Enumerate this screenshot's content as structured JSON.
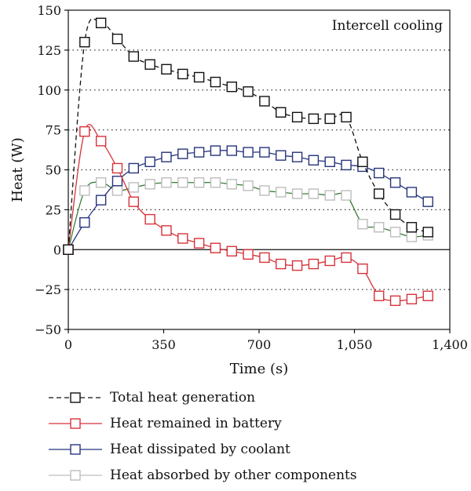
{
  "chart_data": {
    "type": "line",
    "annotation": "Intercell cooling",
    "xlabel": "Time (s)",
    "ylabel": "Heat (W)",
    "xlim": [
      0,
      1400
    ],
    "ylim": [
      -50,
      150
    ],
    "x_ticks": [
      0,
      350,
      700,
      1050,
      1400
    ],
    "x_tick_labels": [
      "0",
      "350",
      "700",
      "1,050",
      "1,400"
    ],
    "y_ticks": [
      -50,
      -25,
      0,
      25,
      50,
      75,
      100,
      125,
      150
    ],
    "y_tick_labels": [
      "−50",
      "−25",
      "0",
      "25",
      "50",
      "75",
      "100",
      "125",
      "150"
    ],
    "grid": "horizontal dotted",
    "legend_position": "bottom",
    "series": [
      {
        "name": "Total heat generation",
        "color": "#111111",
        "line_style": "dashed",
        "x": [
          0,
          60,
          120,
          180,
          240,
          300,
          360,
          420,
          480,
          540,
          600,
          660,
          720,
          780,
          840,
          900,
          960,
          1020,
          1080,
          1140,
          1200,
          1260,
          1320
        ],
        "values": [
          0,
          130,
          142,
          132,
          121,
          116,
          113,
          110,
          108,
          105,
          102,
          99,
          93,
          86,
          83,
          82,
          82,
          83,
          55,
          35,
          22,
          14,
          11
        ]
      },
      {
        "name": "Heat remained in battery",
        "color": "#d6333a",
        "line_style": "solid",
        "x": [
          0,
          60,
          120,
          180,
          240,
          300,
          360,
          420,
          480,
          540,
          600,
          660,
          720,
          780,
          840,
          900,
          960,
          1020,
          1080,
          1140,
          1200,
          1260,
          1320
        ],
        "values": [
          0,
          74,
          68,
          51,
          30,
          19,
          12,
          7,
          4,
          1,
          -1,
          -3,
          -5,
          -9,
          -10,
          -9,
          -7,
          -5,
          -12,
          -29,
          -32,
          -31,
          -29
        ]
      },
      {
        "name": "Heat dissipated by coolant",
        "color": "#27357d",
        "line_style": "solid",
        "x": [
          0,
          60,
          120,
          180,
          240,
          300,
          360,
          420,
          480,
          540,
          600,
          660,
          720,
          780,
          840,
          900,
          960,
          1020,
          1080,
          1140,
          1200,
          1260,
          1320
        ],
        "values": [
          0,
          17,
          31,
          43,
          51,
          55,
          58,
          60,
          61,
          62,
          62,
          61,
          61,
          59,
          58,
          56,
          55,
          53,
          52,
          48,
          42,
          36,
          30
        ]
      },
      {
        "name": "Heat absorbed by other components",
        "color": "#bdbdbd",
        "line_color": "#3a7d3a",
        "line_style": "solid",
        "x": [
          0,
          60,
          120,
          180,
          240,
          300,
          360,
          420,
          480,
          540,
          600,
          660,
          720,
          780,
          840,
          900,
          960,
          1020,
          1080,
          1140,
          1200,
          1260,
          1320
        ],
        "values": [
          0,
          37,
          42,
          37,
          39,
          41,
          42,
          42,
          42,
          42,
          41,
          40,
          37,
          36,
          35,
          35,
          34,
          34,
          16,
          14,
          11,
          8,
          9
        ]
      }
    ]
  }
}
